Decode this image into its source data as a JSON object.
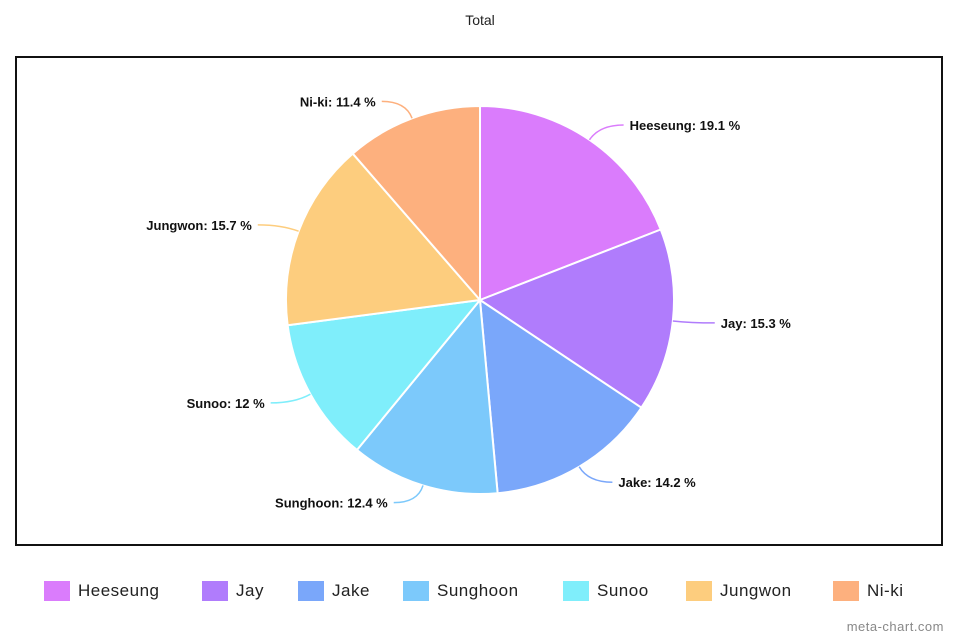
{
  "chart_data": {
    "type": "pie",
    "title": "Total",
    "slices": [
      {
        "name": "Heeseung",
        "value": 19.1,
        "label": "Heeseung: 19.1 %",
        "color": "#da7cfc"
      },
      {
        "name": "Jay",
        "value": 15.3,
        "label": "Jay: 15.3 %",
        "color": "#b07cfc"
      },
      {
        "name": "Jake",
        "value": 14.2,
        "label": "Jake: 14.2 %",
        "color": "#7aa7fa"
      },
      {
        "name": "Sunghoon",
        "value": 12.4,
        "label": "Sunghoon: 12.4 %",
        "color": "#7cc9fb"
      },
      {
        "name": "Sunoo",
        "value": 12,
        "label": "Sunoo: 12 %",
        "color": "#7feefb"
      },
      {
        "name": "Jungwon",
        "value": 15.7,
        "label": "Jungwon: 15.7 %",
        "color": "#fdcd7e"
      },
      {
        "name": "Ni-ki",
        "value": 11.4,
        "label": "Ni-ki: 11.4 %",
        "color": "#fdb07e"
      }
    ],
    "legend_position": "bottom"
  },
  "watermark": "meta-chart.com"
}
